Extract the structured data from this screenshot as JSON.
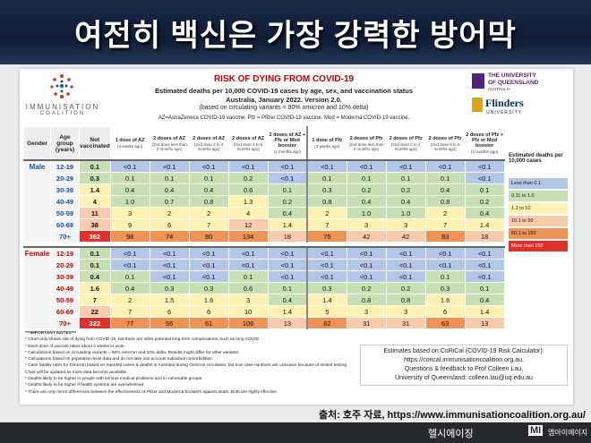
{
  "title": "여전히 백신은 가장 강력한 방어막",
  "card": {
    "org": [
      "IMMUNISATION",
      "COALITION"
    ],
    "heading": "RISK OF DYING FROM COVID-19",
    "subheading": [
      "Estimated deaths per 10,000 COVID-19 cases by age, sex, and vaccination status",
      "Australia, January 2022.  Version 2.0.",
      "(based on circulating variants = 90% omicron and 10% delta)"
    ],
    "abbreviations": "AZ=AstraZeneca COVID-19 vaccine.  Pfz = Pfizer COVID-19 vaccine.  Mod = Moderna COVID-19 vaccine.",
    "uq": [
      "THE UNIVERSITY",
      "OF QUEENSLAND",
      "AUSTRALIA"
    ],
    "flinders": [
      "Flinders",
      "UNIVERSITY"
    ]
  },
  "table": {
    "columns": [
      {
        "title": "Gender"
      },
      {
        "title": "Age group (years)"
      },
      {
        "title": "Not vaccinated"
      },
      {
        "title": "1 dose of AZ",
        "note": "(3 weeks ago)"
      },
      {
        "title": "2 doses of AZ",
        "note": "(2nd dose less than 2 months ago)"
      },
      {
        "title": "2 doses of AZ",
        "note": "(2nd dose 2 to 4 months ago)"
      },
      {
        "title": "2 doses of AZ",
        "note": "(2nd dose 4 to 6 months ago)"
      },
      {
        "title": "2 doses of AZ + Pfz or Mod booster",
        "note": "(2 months ago)"
      },
      {
        "title": "1 dose of Pfz",
        "note": "(3 weeks ago)"
      },
      {
        "title": "2 doses of Pfz",
        "note": "(2nd dose less than 2 months ago)"
      },
      {
        "title": "2 doses of Pfz",
        "note": "(2nd dose 2 to 4 months ago)"
      },
      {
        "title": "2 doses of Pfz",
        "note": "(2nd dose 4 to 6 months ago)"
      },
      {
        "title": "2 doses of Pfz + Pfz or Mod booster",
        "note": "(2 months ago)"
      }
    ],
    "groups": [
      {
        "gender": "Male",
        "color": "#1f4e9a",
        "rows": [
          {
            "age": "12-19",
            "values": [
              "0.1",
              "<0.1",
              "<0.1",
              "<0.1",
              "<0.1",
              "<0.1",
              "<0.1",
              "<0.1",
              "<0.1",
              "<0.1",
              "<0.1"
            ]
          },
          {
            "age": "20-29",
            "values": [
              "0.3",
              "0.1",
              "0.1",
              "0.1",
              "0.2",
              "<0.1",
              "0.1",
              "0.1",
              "0.1",
              "0.1",
              "<0.1"
            ]
          },
          {
            "age": "30-39",
            "values": [
              "1.4",
              "0.4",
              "0.4",
              "0.4",
              "0.6",
              "0.1",
              "0.3",
              "0.2",
              "0.2",
              "0.4",
              "0.1"
            ]
          },
          {
            "age": "40-49",
            "values": [
              "4",
              "1.0",
              "0.7",
              "0.8",
              "1.3",
              "0.2",
              "0.8",
              "0.4",
              "0.4",
              "0.8",
              "0.2"
            ]
          },
          {
            "age": "50-59",
            "values": [
              "11",
              "3",
              "2",
              "2",
              "4",
              "0.4",
              "2",
              "1.0",
              "1.0",
              "2",
              "0.4"
            ]
          },
          {
            "age": "60-69",
            "values": [
              "38",
              "9",
              "6",
              "7",
              "12",
              "1.4",
              "7",
              "3",
              "3",
              "7",
              "1.4"
            ]
          },
          {
            "age": "70+",
            "values": [
              "362",
              "98",
              "74",
              "80",
              "134",
              "18",
              "75",
              "42",
              "42",
              "83",
              "18"
            ]
          }
        ]
      },
      {
        "gender": "Female",
        "color": "#c00000",
        "rows": [
          {
            "age": "12-19",
            "values": [
              "0.1",
              "<0.1",
              "<0.1",
              "<0.1",
              "<0.1",
              "<0.1",
              "<0.1",
              "<0.1",
              "<0.1",
              "<0.1",
              "<0.1"
            ]
          },
          {
            "age": "20-29",
            "values": [
              "0.1",
              "<0.1",
              "<0.1",
              "<0.1",
              "<0.1",
              "<0.1",
              "<0.1",
              "<0.1",
              "<0.1",
              "<0.1",
              "<0.1"
            ]
          },
          {
            "age": "30-39",
            "values": [
              "0.4",
              "0.1",
              "<0.1",
              "<0.1",
              "0.1",
              "<0.1",
              "<0.1",
              "<0.1",
              "<0.1",
              "0.1",
              "<0.1"
            ]
          },
          {
            "age": "40-49",
            "values": [
              "1.6",
              "0.4",
              "0.3",
              "0.3",
              "0.6",
              "0.1",
              "0.3",
              "0.2",
              "0.2",
              "0.3",
              "0.1"
            ]
          },
          {
            "age": "50-59",
            "values": [
              "7",
              "2",
              "1.5",
              "1.6",
              "3",
              "0.4",
              "1.4",
              "0.8",
              "0.8",
              "1.6",
              "0.4"
            ]
          },
          {
            "age": "60-69",
            "values": [
              "22",
              "7",
              "6",
              "6",
              "10",
              "1.4",
              "5",
              "3",
              "3",
              "6",
              "1.4"
            ]
          },
          {
            "age": "70+",
            "values": [
              "322",
              "77",
              "55",
              "61",
              "106",
              "13",
              "62",
              "31",
              "31",
              "63",
              "13"
            ]
          }
        ]
      }
    ]
  },
  "legend": {
    "title": "Estimated deaths per 10,000 cases",
    "items": [
      {
        "label": "Less than 0.1",
        "color": "#b4c6e7"
      },
      {
        "label": "0.11 to 1.0",
        "color": "#c6e0b4"
      },
      {
        "label": "1.1 to 10",
        "color": "#fff2b3"
      },
      {
        "label": "10.1 to 50",
        "color": "#f8cbad"
      },
      {
        "label": "50.1 to 150",
        "color": "#ee9355"
      },
      {
        "label": "More than 150",
        "color": "#e0302a"
      }
    ]
  },
  "notes": {
    "title": "***IMPORTANT NOTES***",
    "items": [
      "* Chart only shows risk of dying from COVID-19, but there are other potential long-term complications, such as long COVID.",
      "* Each dose of vaccine takes about 2 weeks to work.",
      "* Calculations based on circulating variants = 90% omicron and 10% delta. Results might differ for other variants.",
      "* Calculations based on population-level data and do not take into account individual comorbidities.",
      "* Case fatality rates for Omicron based on reported cases & deaths in Australia during Omicron circulation, but true case numbers are unknown because of limited testing.  Chart will be updated as more data become available.",
      "* Deaths likely to be higher in people with serious medical problems and in vulnerable groups.",
      "* Deaths likely to be higher if health systems are overwhelmed.",
      "* There are only minor differences between the effectiveness of Pfizer and Moderna boosters against death. Both are highly effective."
    ]
  },
  "contact": [
    "Estimates based on CoRiCal (COVID-19 Risk Calculator):",
    "https://corical.immunisationcoalition.org.au.",
    "Questions & feedback to Prof Colleen Lau,",
    "University of Queensland: colleen.lau@uq.edu.au"
  ],
  "source": "출처: 호주 자료, https://www.immunisationcoalition.org.au/",
  "footer": {
    "left": "헬시에이징",
    "logo": "MI",
    "brand": "엠아이에이지"
  }
}
